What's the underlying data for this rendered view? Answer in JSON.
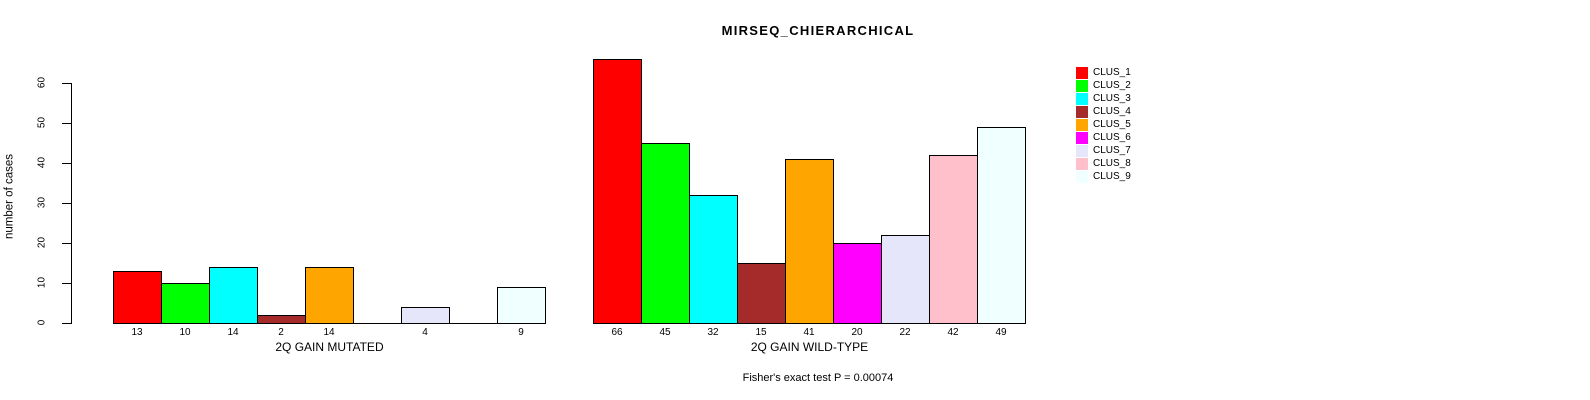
{
  "chart_data": {
    "type": "bar",
    "title": "MIRSEQ_CHIERARCHICAL",
    "ylabel": "number of cases",
    "xlabel": "",
    "ylim": [
      0,
      66
    ],
    "yticks": [
      0,
      10,
      20,
      30,
      40,
      50,
      60
    ],
    "grid": false,
    "legend_position": "right",
    "bar_border_color": "#000000",
    "clusters": [
      {
        "name": "CLUS_1",
        "color": "#FF0000"
      },
      {
        "name": "CLUS_2",
        "color": "#00FF00"
      },
      {
        "name": "CLUS_3",
        "color": "#00FFFF"
      },
      {
        "name": "CLUS_4",
        "color": "#A52A2A"
      },
      {
        "name": "CLUS_5",
        "color": "#FFA500"
      },
      {
        "name": "CLUS_6",
        "color": "#FF00FF"
      },
      {
        "name": "CLUS_7",
        "color": "#E6E6FA"
      },
      {
        "name": "CLUS_8",
        "color": "#FFC0CB"
      },
      {
        "name": "CLUS_9",
        "color": "#F0FFFF"
      }
    ],
    "groups": [
      {
        "label": "2Q GAIN MUTATED",
        "values": [
          13,
          10,
          14,
          2,
          14,
          0,
          4,
          0,
          9
        ]
      },
      {
        "label": "2Q GAIN WILD-TYPE",
        "values": [
          66,
          45,
          32,
          15,
          41,
          20,
          22,
          42,
          49
        ]
      }
    ],
    "zero_bars_hidden": true,
    "annotation": "Fisher's exact test P = 0.00074"
  }
}
